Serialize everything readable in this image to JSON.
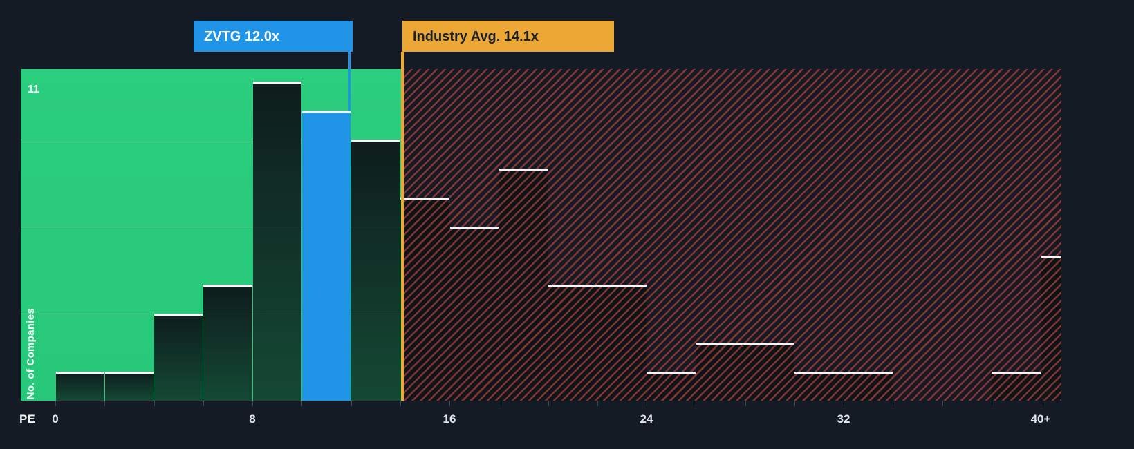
{
  "page": {
    "background": "#151B24"
  },
  "chart_data": {
    "type": "bar",
    "title": "",
    "xlabel": "PE",
    "ylabel": "No. of Companies",
    "y_max_label": "11",
    "bin_width_pe": 2,
    "categories": [
      "0-2",
      "2-4",
      "4-6",
      "6-8",
      "8-10",
      "10-12",
      "12-14",
      "14-16",
      "16-18",
      "18-20",
      "20-22",
      "22-24",
      "24-26",
      "26-28",
      "28-30",
      "30-32",
      "32-34",
      "34-36",
      "36-38",
      "38-40",
      "40+"
    ],
    "values": [
      1,
      1,
      3,
      4,
      11,
      10,
      9,
      7,
      6,
      8,
      4,
      4,
      1,
      2,
      2,
      1,
      1,
      0,
      0,
      1,
      5
    ],
    "ylim": [
      0,
      11.5
    ],
    "x_ticks": [
      {
        "value": 0,
        "label": "0"
      },
      {
        "value": 8,
        "label": "8"
      },
      {
        "value": 16,
        "label": "16"
      },
      {
        "value": 24,
        "label": "24"
      },
      {
        "value": 32,
        "label": "32"
      },
      {
        "value": 40,
        "label": "40+"
      }
    ],
    "gridlines_at": [
      3,
      6,
      9
    ],
    "grid": true,
    "legend": "none",
    "company_marker": {
      "label": "ZVTG 12.0x",
      "pe_value": 12.0,
      "bin_index": 5,
      "color": "#2095E8"
    },
    "industry_avg": {
      "label": "Industry Avg. 14.1x",
      "value": 14.1,
      "color": "#ECA735"
    },
    "regions": {
      "below_avg_fill": "#2BCD7F",
      "above_avg_hatch": "#E94D3E",
      "hatch_style": "diagonal-stripes"
    },
    "colors": {
      "background": "#151B24",
      "bar_fill": "#10181C",
      "bar_top_edge": "#F4F6F7",
      "axis_text": "#E2E6EA"
    }
  }
}
